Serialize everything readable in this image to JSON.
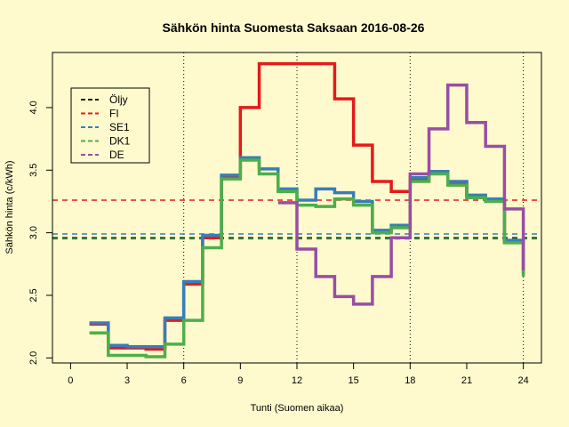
{
  "chart_data": {
    "type": "line",
    "title": "Sähkön hinta Suomesta Saksaan 2016-08-26",
    "xlabel": "Tunti (Suomen aikaa)",
    "ylabel": "Sähkön hinta (c/kWh)",
    "xlim": [
      -0.96,
      24.96
    ],
    "ylim": [
      1.96,
      4.44
    ],
    "x_ticks": [
      0,
      3,
      6,
      9,
      12,
      15,
      18,
      21,
      24
    ],
    "y_ticks": [
      2.0,
      2.5,
      3.0,
      3.5,
      4.0
    ],
    "x_tick_labels": [
      "0",
      "3",
      "6",
      "9",
      "12",
      "15",
      "18",
      "21",
      "24"
    ],
    "y_tick_labels": [
      "2.0",
      "2.5",
      "3.0",
      "3.5",
      "4.0"
    ],
    "vlines": [
      6,
      12,
      18,
      24
    ],
    "legend_position": "top-left",
    "hours": [
      1,
      2,
      3,
      4,
      5,
      6,
      7,
      8,
      9,
      10,
      11,
      12,
      13,
      14,
      15,
      16,
      17,
      18,
      19,
      20,
      21,
      22,
      23,
      24
    ],
    "step_series": [
      {
        "name": "FI",
        "color": "#E41A1C",
        "values": [
          2.27,
          2.08,
          2.08,
          2.07,
          2.3,
          2.59,
          2.96,
          3.45,
          4.0,
          4.35,
          4.35,
          4.35,
          4.35,
          4.07,
          3.7,
          3.41,
          3.33,
          3.43,
          3.48,
          3.4,
          3.29,
          3.26,
          2.93,
          2.67
        ]
      },
      {
        "name": "SE1",
        "color": "#377EB8",
        "values": [
          2.28,
          2.1,
          2.09,
          2.09,
          2.32,
          2.61,
          2.98,
          3.46,
          3.6,
          3.51,
          3.35,
          3.26,
          3.35,
          3.32,
          3.25,
          3.02,
          3.06,
          3.44,
          3.49,
          3.41,
          3.3,
          3.27,
          2.94,
          2.68
        ]
      },
      {
        "name": "DK1",
        "color": "#4DAF4A",
        "values": [
          2.2,
          2.02,
          2.02,
          2.01,
          2.11,
          2.3,
          2.88,
          3.43,
          3.58,
          3.47,
          3.33,
          3.22,
          3.21,
          3.27,
          3.22,
          3.0,
          3.04,
          3.41,
          3.47,
          3.38,
          3.28,
          3.25,
          2.92,
          2.65
        ]
      },
      {
        "name": "DE",
        "color": "#984EA3",
        "values": [
          null,
          null,
          null,
          null,
          null,
          null,
          null,
          null,
          null,
          null,
          3.24,
          2.87,
          2.65,
          2.49,
          2.43,
          2.65,
          2.96,
          3.47,
          3.83,
          4.18,
          3.88,
          3.69,
          3.19,
          2.7
        ]
      }
    ],
    "hline_series": [
      {
        "name": "Öljy",
        "color": "#1A1A1A",
        "value": 2.96
      },
      {
        "name": "FI",
        "color": "#E41A1C",
        "value": 3.26
      },
      {
        "name": "SE1",
        "color": "#377EB8",
        "value": 2.99
      },
      {
        "name": "DK1",
        "color": "#4DAF4A",
        "value": 2.95
      }
    ],
    "legend": [
      {
        "name": "Öljy",
        "color": "#1A1A1A"
      },
      {
        "name": "FI",
        "color": "#E41A1C"
      },
      {
        "name": "SE1",
        "color": "#377EB8"
      },
      {
        "name": "DK1",
        "color": "#4DAF4A"
      },
      {
        "name": "DE",
        "color": "#984EA3"
      }
    ]
  }
}
